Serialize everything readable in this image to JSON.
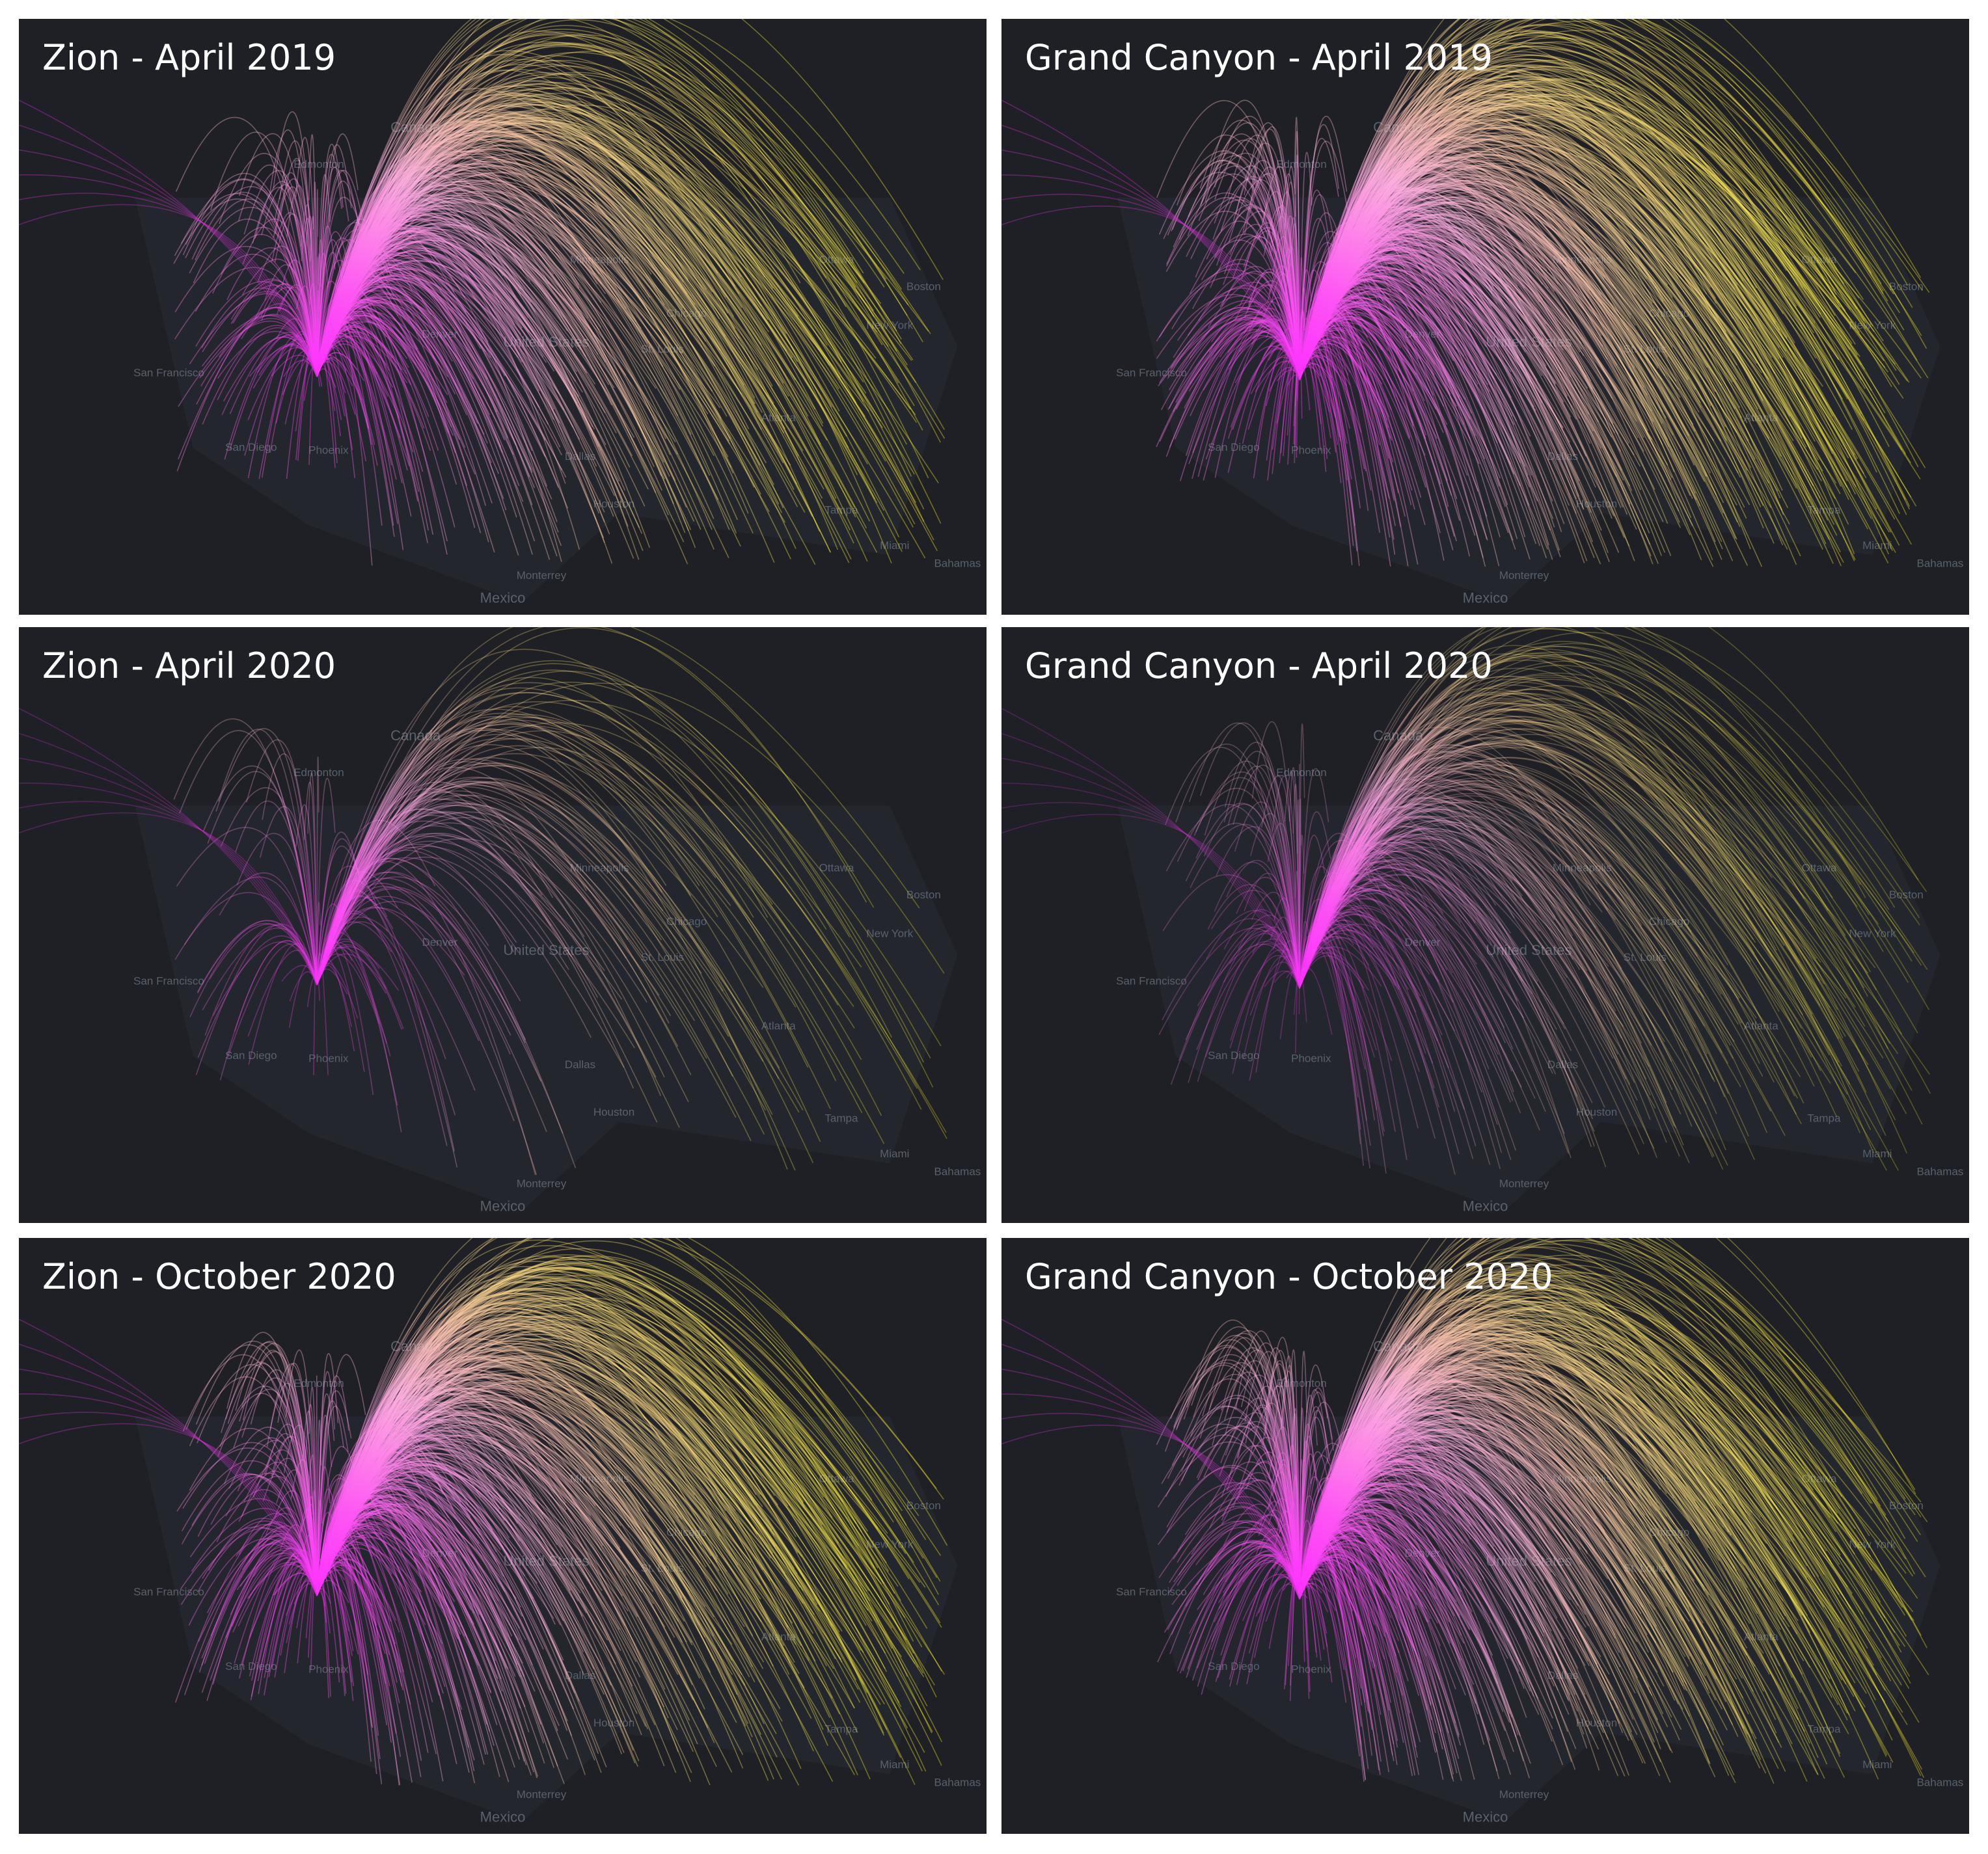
{
  "panels": [
    {
      "title": "Zion - April 2019"
    },
    {
      "title": "Grand Canyon - April 2019"
    },
    {
      "title": "Zion - April 2020"
    },
    {
      "title": "Grand Canyon - April 2020"
    },
    {
      "title": "Zion - October 2020"
    },
    {
      "title": "Grand Canyon - October 2020"
    }
  ],
  "map_labels": [
    "Canada",
    "Edmonton",
    "Mexico",
    "Monterrey",
    "Houston",
    "Bahamas",
    "San Francisco",
    "Phoenix",
    "San Diego",
    "Denver",
    "Dallas",
    "Tampa",
    "Miami",
    "Chicago",
    "St. Louis",
    "Atlanta",
    "New York",
    "Boston",
    "Ottawa",
    "Minneapolis",
    "United States"
  ]
}
